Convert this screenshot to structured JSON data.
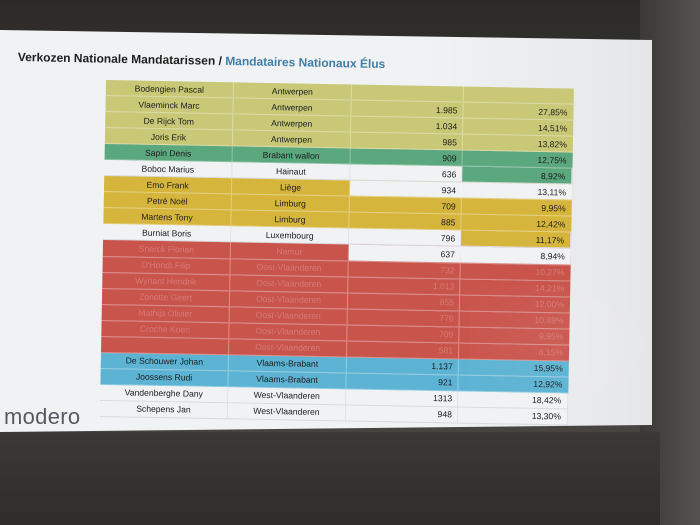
{
  "slide": {
    "title_nl": "Verkozen Nationale Mandatarissen",
    "title_sep": "/",
    "title_fr": "Mandataires Nationaux Élus",
    "logo": "modero"
  },
  "colors": {
    "olive": "#c8c877",
    "green": "#5ba77e",
    "gold": "#d6b53c",
    "red": "#c9544c",
    "blue": "#5cb3d3",
    "white": "#f1f2f4",
    "title_fr": "#3f7fa6"
  },
  "rows": [
    {
      "name": "Bodengien Pascal",
      "province": "Antwerpen",
      "votes": "",
      "pct": "",
      "color": "#c8c877"
    },
    {
      "name": "Vlaeminck Marc",
      "province": "Antwerpen",
      "votes": "1.985",
      "pct": "27,85%",
      "color": "#c8c877"
    },
    {
      "name": "De Rijck Tom",
      "province": "Antwerpen",
      "votes": "1.034",
      "pct": "14,51%",
      "color": "#c8c877"
    },
    {
      "name": "Joris Erik",
      "province": "Antwerpen",
      "votes": "985",
      "pct": "13,82%",
      "color": "#c8c877"
    },
    {
      "name": "Sapin Denis",
      "province": "Brabant wallon",
      "votes": "909",
      "pct": "12,75%",
      "color": "#5ba77e"
    },
    {
      "name": "Boboc Marius",
      "province": "Hainaut",
      "votes": "636",
      "pct": "8,92%",
      "color": "#f1f2f4",
      "split": "#5ba77e"
    },
    {
      "name": "Emo Frank",
      "province": "Liège",
      "votes": "934",
      "pct": "13,11%",
      "color": "#d6b53c",
      "white_nums": true
    },
    {
      "name": "Petré Noël",
      "province": "Limburg",
      "votes": "709",
      "pct": "9,95%",
      "color": "#d6b53c"
    },
    {
      "name": "Martens Tony",
      "province": "Limburg",
      "votes": "885",
      "pct": "12,42%",
      "color": "#d6b53c"
    },
    {
      "name": "Burniat Boris",
      "province": "Luxembourg",
      "votes": "796",
      "pct": "11,17%",
      "color": "#f1f2f4",
      "split": "#d6b53c"
    },
    {
      "name": "Snerck Florian",
      "province": "Namur",
      "votes": "637",
      "pct": "8,94%",
      "color": "#c9544c",
      "white_nums": true,
      "faded": true
    },
    {
      "name": "D'Hondt Filip",
      "province": "Oost-Vlaanderen",
      "votes": "732",
      "pct": "10,27%",
      "color": "#c9544c",
      "faded": true
    },
    {
      "name": "Wynant Hendrik",
      "province": "Oost-Vlaanderen",
      "votes": "1.013",
      "pct": "14,21%",
      "color": "#c9544c",
      "faded": true
    },
    {
      "name": "Zonotte Geert",
      "province": "Oost-Vlaanderen",
      "votes": "855",
      "pct": "12,00%",
      "color": "#c9544c",
      "faded": true
    },
    {
      "name": "Mathijs Olivier",
      "province": "Oost-Vlaanderen",
      "votes": "776",
      "pct": "10,89%",
      "color": "#c9544c",
      "faded": true
    },
    {
      "name": "Croche Koen",
      "province": "Oost-Vlaanderen",
      "votes": "709",
      "pct": "9,95%",
      "color": "#c9544c",
      "faded": true
    },
    {
      "name": "",
      "province": "Oost-Vlaanderen",
      "votes": "581",
      "pct": "8,15%",
      "color": "#c9544c",
      "faded": true
    },
    {
      "name": "De Schouwer Johan",
      "province": "Vlaams-Brabant",
      "votes": "1.137",
      "pct": "15,95%",
      "color": "#5cb3d3"
    },
    {
      "name": "Joossens Rudi",
      "province": "Vlaams-Brabant",
      "votes": "921",
      "pct": "12,92%",
      "color": "#5cb3d3"
    },
    {
      "name": "Vandenberghe Dany",
      "province": "West-Vlaanderen",
      "votes": "1313",
      "pct": "18,42%",
      "color": "#f1f2f4"
    },
    {
      "name": "Schepens Jan",
      "province": "West-Vlaanderen",
      "votes": "948",
      "pct": "13,30%",
      "color": "#f1f2f4"
    }
  ]
}
